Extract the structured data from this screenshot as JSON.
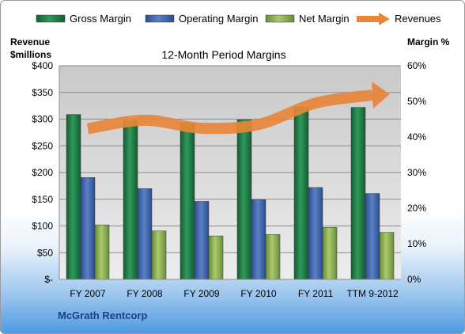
{
  "chart_data": {
    "type": "bar",
    "title": "12-Month Period Margins",
    "company": "McGrath Rentcorp",
    "left_axis_label": [
      "Revenue",
      "$millions"
    ],
    "right_axis_label": "Margin %",
    "categories": [
      "FY 2007",
      "FY 2008",
      "FY 2009",
      "FY 2010",
      "FY 2011",
      "TTM 9-2012"
    ],
    "left_ticks": [
      "$-",
      "$50",
      "$100",
      "$150",
      "$200",
      "$250",
      "$300",
      "$350",
      "$400"
    ],
    "right_ticks": [
      "0%",
      "10%",
      "20%",
      "30%",
      "40%",
      "50%",
      "60%"
    ],
    "ylim_left": [
      0,
      400
    ],
    "ylim_right": [
      0,
      60
    ],
    "legend_position": "top",
    "grid": true,
    "series": [
      {
        "name": "Gross Margin",
        "type": "bar",
        "axis": "right",
        "values": [
          46.3,
          44.5,
          43.9,
          44.8,
          48.4,
          48.3
        ],
        "color": "#1e7d45"
      },
      {
        "name": "Operating Margin",
        "type": "bar",
        "axis": "right",
        "values": [
          28.6,
          25.5,
          21.9,
          22.4,
          25.8,
          24.1
        ],
        "color": "#3f67b1"
      },
      {
        "name": "Net Margin",
        "type": "bar",
        "axis": "right",
        "values": [
          15.3,
          13.6,
          12.2,
          12.6,
          14.6,
          13.2
        ],
        "color": "#8fb552"
      },
      {
        "name": "Revenues",
        "type": "line",
        "axis": "left",
        "values": [
          282,
          298,
          283,
          290,
          330,
          345
        ],
        "color": "#e8853a"
      }
    ]
  }
}
